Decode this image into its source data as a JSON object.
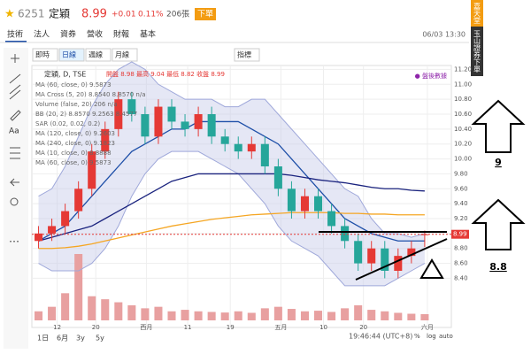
{
  "header": {
    "symbol": "6251",
    "name": "定穎",
    "price": "8.99",
    "change": "+0.01",
    "pct": "0.11%",
    "volume": "206張",
    "order": "下單"
  },
  "side_tag": [
    "嘉天堂",
    "玉山證券下單"
  ],
  "tabs": [
    "技術",
    "法人",
    "資券",
    "營收",
    "財報",
    "基本"
  ],
  "datetime": "06/03 13:30",
  "toolbar": [
    "即時",
    "日線",
    "週線",
    "月線",
    "指標"
  ],
  "legend": {
    "title": "定穎, D, TSE",
    "ohlc": "開盤 8.98 最高 9.04 最低 8.82 收盤 8.99",
    "note": "● 盤後數據",
    "lines": [
      "MA (60, close, 0)  9.5873",
      "MA Cross (5, 20)  8.8540  8.8570  n/a",
      "Volume (false, 20)  206  n/a",
      "BB (20, 2)  8.8570  9.2563  8.4577",
      "SAR (0.02, 0.02, 0.2)",
      "MA (120, close, 0)  9.2603",
      "MA (240, close, 0)  9.1823",
      "MA (10, close, 0)  8.8888",
      "MA (60, close, 0)  9.5873"
    ]
  },
  "chart_data": {
    "type": "candlestick",
    "open": [
      8.9,
      9.0,
      9.1,
      9.3,
      9.6,
      10.1,
      10.4,
      10.8,
      10.6,
      10.3,
      10.7,
      10.5,
      10.4,
      10.6,
      10.3,
      10.2,
      10.1,
      10.2,
      9.9,
      9.6,
      9.3,
      9.5,
      9.3,
      9.1,
      8.9,
      8.6,
      8.8,
      8.5,
      8.7,
      8.98
    ],
    "high": [
      9.1,
      9.2,
      9.4,
      9.7,
      10.2,
      10.5,
      10.9,
      10.9,
      10.7,
      10.8,
      10.8,
      10.6,
      10.7,
      10.7,
      10.4,
      10.3,
      10.3,
      10.3,
      10.0,
      9.7,
      9.6,
      9.6,
      9.4,
      9.2,
      9.0,
      8.9,
      8.9,
      8.8,
      8.9,
      9.04
    ],
    "low": [
      8.8,
      8.9,
      9.0,
      9.2,
      9.5,
      10.0,
      10.3,
      10.5,
      10.2,
      10.2,
      10.4,
      10.3,
      10.3,
      10.2,
      10.1,
      10.0,
      10.0,
      9.8,
      9.5,
      9.2,
      9.2,
      9.2,
      9.0,
      8.8,
      8.5,
      8.5,
      8.4,
      8.4,
      8.6,
      8.82
    ],
    "close": [
      9.0,
      9.1,
      9.3,
      9.6,
      10.1,
      10.4,
      10.8,
      10.6,
      10.3,
      10.7,
      10.5,
      10.4,
      10.6,
      10.3,
      10.2,
      10.1,
      10.2,
      9.9,
      9.6,
      9.3,
      9.5,
      9.3,
      9.1,
      8.9,
      8.6,
      8.8,
      8.5,
      8.7,
      8.8,
      8.99
    ],
    "volume": [
      300,
      450,
      900,
      2200,
      800,
      700,
      600,
      500,
      400,
      450,
      300,
      350,
      300,
      280,
      260,
      300,
      250,
      400,
      450,
      380,
      300,
      320,
      280,
      400,
      500,
      350,
      300,
      250,
      220,
      206
    ],
    "up_color": "#e53935",
    "down_color": "#26a69a",
    "volume_color": "#e8a0a0",
    "series": [
      {
        "color": "#9fa8da",
        "values": [
          9.5,
          9.6,
          9.9,
          10.3,
          10.7,
          11.0,
          11.2,
          11.3,
          11.2,
          11.0,
          10.9,
          10.8,
          10.8,
          10.8,
          10.7,
          10.7,
          10.8,
          10.8,
          10.6,
          10.4,
          10.2,
          10.0,
          9.8,
          9.6,
          9.5,
          9.2,
          9.0,
          9.0,
          8.95,
          9.0
        ]
      },
      {
        "color": "#9fa8da",
        "values": [
          8.6,
          8.5,
          8.5,
          8.5,
          8.6,
          8.8,
          9.1,
          9.5,
          9.8,
          10.0,
          10.1,
          10.1,
          10.1,
          10.0,
          9.9,
          9.8,
          9.6,
          9.4,
          9.1,
          8.9,
          8.8,
          8.7,
          8.5,
          8.3,
          8.3,
          8.3,
          8.3,
          8.4,
          8.5,
          8.6
        ]
      },
      {
        "color": "#1e4fa8",
        "values": [
          8.9,
          9.0,
          9.1,
          9.3,
          9.5,
          9.7,
          9.9,
          10.1,
          10.2,
          10.3,
          10.4,
          10.4,
          10.5,
          10.5,
          10.5,
          10.5,
          10.4,
          10.3,
          10.2,
          10.0,
          9.8,
          9.6,
          9.4,
          9.2,
          9.1,
          9.0,
          8.95,
          8.9,
          8.9,
          8.9
        ]
      },
      {
        "color": "#1a237e",
        "values": [
          8.9,
          8.95,
          9.0,
          9.05,
          9.1,
          9.2,
          9.3,
          9.4,
          9.5,
          9.6,
          9.7,
          9.75,
          9.8,
          9.8,
          9.8,
          9.8,
          9.8,
          9.8,
          9.8,
          9.78,
          9.75,
          9.72,
          9.7,
          9.68,
          9.65,
          9.62,
          9.6,
          9.6,
          9.58,
          9.57
        ]
      },
      {
        "color": "#f5a623",
        "values": [
          8.8,
          8.8,
          8.81,
          8.83,
          8.86,
          8.9,
          8.94,
          8.98,
          9.02,
          9.06,
          9.1,
          9.13,
          9.16,
          9.19,
          9.21,
          9.23,
          9.25,
          9.26,
          9.27,
          9.28,
          9.28,
          9.28,
          9.28,
          9.27,
          9.27,
          9.26,
          9.26,
          9.25,
          9.25,
          9.25
        ]
      }
    ],
    "xlim": [
      -0.5,
      31
    ],
    "ylim": [
      7.8,
      11.3
    ],
    "xticks": [
      {
        "value": 1.4,
        "label": "12"
      },
      {
        "value": 4.3,
        "label": "20"
      },
      {
        "value": 8.1,
        "label": "西月"
      },
      {
        "value": 11.2,
        "label": "11"
      },
      {
        "value": 14.4,
        "label": "19"
      },
      {
        "value": 18.2,
        "label": "五月"
      },
      {
        "value": 21.4,
        "label": "10"
      },
      {
        "value": 24.4,
        "label": "20"
      },
      {
        "value": 29.2,
        "label": "六月"
      }
    ],
    "yticks": [
      {
        "value": 8.4,
        "label": "8.40"
      },
      {
        "value": 8.6,
        "label": "8.60"
      },
      {
        "value": 8.8,
        "label": "8.80"
      },
      {
        "value": 9.0,
        "label": "9.00"
      },
      {
        "value": 9.2,
        "label": "9.20"
      },
      {
        "value": 9.4,
        "label": "9.40"
      },
      {
        "value": 9.6,
        "label": "9.60"
      },
      {
        "value": 9.8,
        "label": "9.80"
      },
      {
        "value": 10.0,
        "label": "10.00"
      },
      {
        "value": 10.2,
        "label": "10.20"
      },
      {
        "value": 10.4,
        "label": "10.40"
      },
      {
        "value": 10.6,
        "label": "10.60"
      },
      {
        "value": 10.8,
        "label": "10.80"
      },
      {
        "value": 11.0,
        "label": "11.00"
      },
      {
        "value": 11.2,
        "label": "11.20"
      }
    ],
    "grid": true
  },
  "annotations": [
    "9",
    "8.8"
  ],
  "bottom": {
    "ranges": [
      "1日",
      "6月",
      "3y",
      "5y"
    ],
    "time": "19:46:44 (UTC+8)",
    "options": [
      "%",
      "log",
      "auto"
    ]
  }
}
